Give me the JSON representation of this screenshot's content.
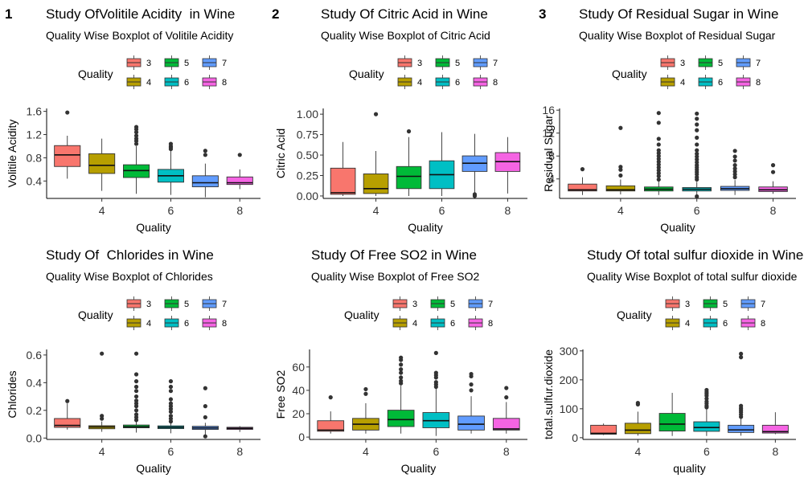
{
  "colors": {
    "3": "#F8766D",
    "4": "#B79F00",
    "5": "#00BA38",
    "6": "#00BFC4",
    "7": "#619CFF",
    "8": "#F564E3",
    "axis": "#000000",
    "outlier": "#333333"
  },
  "chart_data": [
    {
      "type": "boxplot",
      "panel_tag": "1",
      "title": "Study OfVolitile Acidity  in Wine",
      "subtitle": "Quality Wise Boxplot of Volitile Acidity",
      "legend_title": "Quality",
      "legend_position": "top",
      "xlabel": "Quality",
      "ylabel": "Volitile Acidity",
      "xlim": [
        2.4,
        8.6
      ],
      "ylim": [
        0.1,
        1.65
      ],
      "xticks": [
        4,
        6,
        8
      ],
      "yticks": [
        0.4,
        0.8,
        1.2,
        1.6
      ],
      "ytick_labels": [
        "0.4",
        "0.8",
        "1.2",
        "1.6"
      ],
      "boxes": [
        {
          "quality": 3,
          "min": 0.44,
          "q1": 0.65,
          "median": 0.85,
          "q3": 1.01,
          "max": 1.18,
          "outliers": [
            1.58
          ]
        },
        {
          "quality": 4,
          "min": 0.23,
          "q1": 0.53,
          "median": 0.67,
          "q3": 0.87,
          "max": 1.13,
          "outliers": []
        },
        {
          "quality": 5,
          "min": 0.18,
          "q1": 0.46,
          "median": 0.58,
          "q3": 0.68,
          "max": 1.0,
          "outliers": [
            1.04,
            1.09,
            1.13,
            1.18,
            1.24,
            1.29,
            1.33
          ]
        },
        {
          "quality": 6,
          "min": 0.16,
          "q1": 0.38,
          "median": 0.49,
          "q3": 0.6,
          "max": 0.92,
          "outliers": [
            0.95,
            0.98,
            1.0,
            1.04
          ]
        },
        {
          "quality": 7,
          "min": 0.12,
          "q1": 0.3,
          "median": 0.37,
          "q3": 0.49,
          "max": 0.7,
          "outliers": [
            0.85,
            0.92
          ]
        },
        {
          "quality": 8,
          "min": 0.26,
          "q1": 0.34,
          "median": 0.37,
          "q3": 0.47,
          "max": 0.6,
          "outliers": [
            0.85
          ]
        }
      ]
    },
    {
      "type": "boxplot",
      "panel_tag": "2",
      "title": "Study Of Citric Acid in Wine",
      "subtitle": "Quality Wise Boxplot of Citric Acid",
      "legend_title": "Quality",
      "legend_position": "top",
      "xlabel": "Quality",
      "ylabel": "Citric Acid",
      "xlim": [
        2.4,
        8.6
      ],
      "ylim": [
        -0.03,
        1.07
      ],
      "xticks": [
        4,
        6,
        8
      ],
      "yticks": [
        0.0,
        0.25,
        0.5,
        0.75,
        1.0
      ],
      "ytick_labels": [
        "0.00",
        "0.25",
        "0.50",
        "0.75",
        "1.00"
      ],
      "boxes": [
        {
          "quality": 3,
          "min": 0.0,
          "q1": 0.02,
          "median": 0.04,
          "q3": 0.34,
          "max": 0.66,
          "outliers": []
        },
        {
          "quality": 4,
          "min": 0.0,
          "q1": 0.03,
          "median": 0.09,
          "q3": 0.27,
          "max": 0.55,
          "outliers": [
            1.0
          ]
        },
        {
          "quality": 5,
          "min": 0.0,
          "q1": 0.09,
          "median": 0.24,
          "q3": 0.36,
          "max": 0.72,
          "outliers": [
            0.79
          ]
        },
        {
          "quality": 6,
          "min": 0.0,
          "q1": 0.09,
          "median": 0.26,
          "q3": 0.43,
          "max": 0.78,
          "outliers": []
        },
        {
          "quality": 7,
          "min": 0.04,
          "q1": 0.3,
          "median": 0.4,
          "q3": 0.49,
          "max": 0.76,
          "outliers": [
            0.0,
            0.02
          ]
        },
        {
          "quality": 8,
          "min": 0.03,
          "q1": 0.3,
          "median": 0.42,
          "q3": 0.53,
          "max": 0.72,
          "outliers": []
        }
      ]
    },
    {
      "type": "boxplot",
      "panel_tag": "3",
      "title": "Study Of Residual Sugar in Wine",
      "subtitle": "Quality Wise Boxplot of Residual Sugar",
      "legend_title": "Quality",
      "legend_position": "top",
      "xlabel": "Quality",
      "ylabel": "Residual Sugar",
      "xlim": [
        2.4,
        8.6
      ],
      "ylim": [
        0.6,
        16.3
      ],
      "xticks": [
        4,
        6,
        8
      ],
      "yticks": [
        4,
        8,
        12,
        16
      ],
      "ytick_labels": [
        "4",
        "8",
        "12",
        "16"
      ],
      "boxes": [
        {
          "quality": 3,
          "min": 1.2,
          "q1": 1.9,
          "median": 2.1,
          "q3": 3.1,
          "max": 4.3,
          "outliers": [
            5.7
          ]
        },
        {
          "quality": 4,
          "min": 1.3,
          "q1": 1.9,
          "median": 2.1,
          "q3": 2.8,
          "max": 3.9,
          "outliers": [
            4.6,
            5.6,
            6.1,
            12.9
          ]
        },
        {
          "quality": 5,
          "min": 1.2,
          "q1": 1.9,
          "median": 2.2,
          "q3": 2.6,
          "max": 3.6,
          "outliers": [
            3.9,
            4.5,
            5.0,
            5.5,
            6.0,
            6.5,
            7.0,
            7.5,
            8.0,
            8.5,
            9.0,
            10.0,
            11.0,
            13.8,
            15.5
          ]
        },
        {
          "quality": 6,
          "min": 0.9,
          "q1": 1.9,
          "median": 2.2,
          "q3": 2.5,
          "max": 3.5,
          "outliers": [
            0.95,
            3.9,
            4.3,
            4.8,
            5.2,
            5.6,
            6.0,
            6.4,
            6.9,
            7.4,
            7.9,
            8.4,
            9.0,
            10.0,
            11.2,
            12.5,
            13.5,
            14.5,
            15.4
          ]
        },
        {
          "quality": 7,
          "min": 1.2,
          "q1": 2.0,
          "median": 2.3,
          "q3": 2.7,
          "max": 3.8,
          "outliers": [
            4.3,
            4.8,
            5.3,
            5.8,
            6.4,
            7.2,
            7.9,
            8.9
          ]
        },
        {
          "quality": 8,
          "min": 1.4,
          "q1": 1.8,
          "median": 2.1,
          "q3": 2.6,
          "max": 3.6,
          "outliers": [
            5.2,
            6.4
          ]
        }
      ]
    },
    {
      "type": "boxplot",
      "panel_tag": "",
      "title": "Study Of  Chlorides in Wine",
      "subtitle": "Quality Wise Boxplot of Chlorides",
      "legend_title": "Quality",
      "legend_position": "top",
      "xlabel": "Quality",
      "ylabel": "Chlorides",
      "xlim": [
        2.4,
        8.6
      ],
      "ylim": [
        -0.01,
        0.64
      ],
      "xticks": [
        4,
        6,
        8
      ],
      "yticks": [
        0.0,
        0.2,
        0.4,
        0.6
      ],
      "ytick_labels": [
        "0.0",
        "0.2",
        "0.4",
        "0.6"
      ],
      "boxes": [
        {
          "quality": 3,
          "min": 0.061,
          "q1": 0.077,
          "median": 0.091,
          "q3": 0.141,
          "max": 0.25,
          "outliers": [
            0.267
          ]
        },
        {
          "quality": 4,
          "min": 0.045,
          "q1": 0.067,
          "median": 0.08,
          "q3": 0.089,
          "max": 0.12,
          "outliers": [
            0.14,
            0.16,
            0.61
          ]
        },
        {
          "quality": 5,
          "min": 0.039,
          "q1": 0.074,
          "median": 0.081,
          "q3": 0.094,
          "max": 0.125,
          "outliers": [
            0.13,
            0.15,
            0.17,
            0.2,
            0.23,
            0.25,
            0.27,
            0.3,
            0.34,
            0.37,
            0.41,
            0.46,
            0.61
          ]
        },
        {
          "quality": 6,
          "min": 0.034,
          "q1": 0.068,
          "median": 0.078,
          "q3": 0.088,
          "max": 0.115,
          "outliers": [
            0.12,
            0.14,
            0.16,
            0.19,
            0.21,
            0.23,
            0.25,
            0.28,
            0.34,
            0.37,
            0.41
          ]
        },
        {
          "quality": 7,
          "min": 0.012,
          "q1": 0.062,
          "median": 0.073,
          "q3": 0.085,
          "max": 0.11,
          "outliers": [
            0.012,
            0.15,
            0.23,
            0.36
          ]
        },
        {
          "quality": 8,
          "min": 0.044,
          "q1": 0.062,
          "median": 0.07,
          "q3": 0.078,
          "max": 0.086,
          "outliers": []
        }
      ]
    },
    {
      "type": "boxplot",
      "panel_tag": "",
      "title": "Study Of Free SO2 in Wine",
      "subtitle": "Quality Wise Boxplot of Free SO2",
      "legend_title": "Quality",
      "legend_position": "top",
      "xlabel": "Quality",
      "ylabel": "Free SO2",
      "xlim": [
        2.4,
        8.6
      ],
      "ylim": [
        -2,
        75
      ],
      "xticks": [
        4,
        6,
        8
      ],
      "yticks": [
        0,
        20,
        40,
        60
      ],
      "ytick_labels": [
        "0",
        "20",
        "40",
        "60"
      ],
      "boxes": [
        {
          "quality": 3,
          "min": 3,
          "q1": 5,
          "median": 6,
          "q3": 14,
          "max": 22,
          "outliers": [
            34
          ]
        },
        {
          "quality": 4,
          "min": 3,
          "q1": 6,
          "median": 11,
          "q3": 16,
          "max": 29,
          "outliers": [
            37,
            41
          ]
        },
        {
          "quality": 5,
          "min": 3,
          "q1": 9,
          "median": 15,
          "q3": 23,
          "max": 44,
          "outliers": [
            46,
            48,
            51,
            55,
            58,
            62,
            66,
            68
          ]
        },
        {
          "quality": 6,
          "min": 1,
          "q1": 8,
          "median": 14,
          "q3": 21,
          "max": 42,
          "outliers": [
            43,
            45,
            47,
            51,
            53,
            55,
            72
          ]
        },
        {
          "quality": 7,
          "min": 3,
          "q1": 6,
          "median": 11,
          "q3": 18,
          "max": 35,
          "outliers": [
            40,
            45,
            52,
            54
          ]
        },
        {
          "quality": 8,
          "min": 3,
          "q1": 6,
          "median": 7,
          "q3": 16,
          "max": 30,
          "outliers": [
            34,
            42
          ]
        }
      ]
    },
    {
      "type": "boxplot",
      "panel_tag": "",
      "title": "Study Of total sulfur dioxide in Wine",
      "subtitle": "Quality Wise Boxplot of total sulfur dioxide",
      "legend_title": "Quality",
      "legend_position": "top",
      "xlabel": "quality",
      "ylabel": "total.sulfur.dioxide",
      "xlim": [
        2.4,
        8.6
      ],
      "ylim": [
        -6,
        305
      ],
      "xticks": [
        4,
        6,
        8
      ],
      "yticks": [
        0,
        100,
        200,
        300
      ],
      "ytick_labels": [
        "0",
        "100",
        "200",
        "300"
      ],
      "boxes": [
        {
          "quality": 3,
          "min": 9,
          "q1": 12,
          "median": 15,
          "q3": 43,
          "max": 49,
          "outliers": []
        },
        {
          "quality": 4,
          "min": 7,
          "q1": 14,
          "median": 26,
          "q3": 50,
          "max": 90,
          "outliers": [
            115,
            120
          ]
        },
        {
          "quality": 5,
          "min": 6,
          "q1": 23,
          "median": 47,
          "q3": 84,
          "max": 155,
          "outliers": []
        },
        {
          "quality": 6,
          "min": 6,
          "q1": 22,
          "median": 35,
          "q3": 55,
          "max": 100,
          "outliers": [
            105,
            110,
            118,
            125,
            135,
            145,
            152,
            158,
            165
          ]
        },
        {
          "quality": 7,
          "min": 7,
          "q1": 18,
          "median": 27,
          "q3": 43,
          "max": 66,
          "outliers": [
            72,
            80,
            88,
            95,
            102,
            110,
            278,
            290
          ]
        },
        {
          "quality": 8,
          "min": 12,
          "q1": 16,
          "median": 21,
          "q3": 43,
          "max": 88,
          "outliers": []
        }
      ]
    }
  ]
}
